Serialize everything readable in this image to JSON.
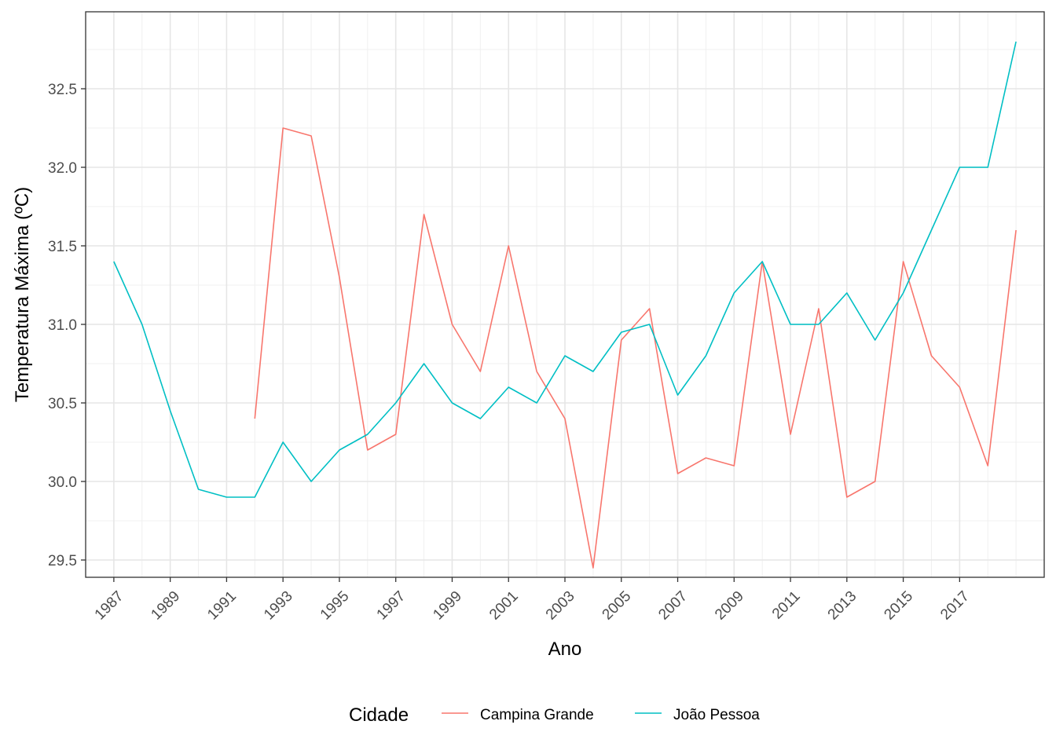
{
  "chart_data": {
    "type": "line",
    "xlabel": "Ano",
    "ylabel": "Temperatura Máxima (ºC)",
    "xlim": [
      1986,
      2020
    ],
    "ylim": [
      29.39,
      32.99
    ],
    "x_ticks": [
      1987,
      1989,
      1991,
      1993,
      1995,
      1997,
      1999,
      2001,
      2003,
      2005,
      2007,
      2009,
      2011,
      2013,
      2015,
      2017
    ],
    "y_ticks": [
      29.5,
      30.0,
      30.5,
      31.0,
      31.5,
      32.0,
      32.5
    ],
    "y_tick_labels": [
      "29.5",
      "30.0",
      "30.5",
      "31.0",
      "31.5",
      "32.0",
      "32.5"
    ],
    "grid": true,
    "legend": {
      "title": "Cidade",
      "position": "bottom"
    },
    "series": [
      {
        "name": "Campina Grande",
        "color": "#F8766D",
        "points": [
          [
            1992,
            30.4
          ],
          [
            1993,
            32.25
          ],
          [
            1994,
            32.2
          ],
          [
            1995,
            31.3
          ],
          [
            1996,
            30.2
          ],
          [
            1997,
            30.3
          ],
          [
            1998,
            31.7
          ],
          [
            1999,
            31.0
          ],
          [
            2000,
            30.7
          ],
          [
            2001,
            31.5
          ],
          [
            2002,
            30.7
          ],
          [
            2003,
            30.4
          ],
          [
            2004,
            29.45
          ],
          [
            2005,
            30.9
          ],
          [
            2006,
            31.1
          ],
          [
            2007,
            30.05
          ],
          [
            2008,
            30.15
          ],
          [
            2009,
            30.1
          ],
          [
            2010,
            31.4
          ],
          [
            2011,
            30.3
          ],
          [
            2012,
            31.1
          ],
          [
            2013,
            29.9
          ],
          [
            2014,
            30.0
          ],
          [
            2015,
            31.4
          ],
          [
            2016,
            30.8
          ],
          [
            2017,
            30.6
          ],
          [
            2018,
            30.1
          ],
          [
            2019,
            31.6
          ]
        ]
      },
      {
        "name": "João Pessoa",
        "color": "#00BFC4",
        "points": [
          [
            1987,
            31.4
          ],
          [
            1988,
            31.0
          ],
          [
            1989,
            30.45
          ],
          [
            1990,
            29.95
          ],
          [
            1991,
            29.9
          ],
          [
            1992,
            29.9
          ],
          [
            1993,
            30.25
          ],
          [
            1994,
            30.0
          ],
          [
            1995,
            30.2
          ],
          [
            1996,
            30.3
          ],
          [
            1997,
            30.5
          ],
          [
            1998,
            30.75
          ],
          [
            1999,
            30.5
          ],
          [
            2000,
            30.4
          ],
          [
            2001,
            30.6
          ],
          [
            2002,
            30.5
          ],
          [
            2003,
            30.8
          ],
          [
            2004,
            30.7
          ],
          [
            2005,
            30.95
          ],
          [
            2006,
            31.0
          ],
          [
            2007,
            30.55
          ],
          [
            2008,
            30.8
          ],
          [
            2009,
            31.2
          ],
          [
            2010,
            31.4
          ],
          [
            2011,
            31.0
          ],
          [
            2012,
            31.0
          ],
          [
            2013,
            31.2
          ],
          [
            2014,
            30.9
          ],
          [
            2015,
            31.2
          ],
          [
            2016,
            31.6
          ],
          [
            2017,
            32.0
          ],
          [
            2018,
            32.0
          ],
          [
            2019,
            32.8
          ]
        ]
      }
    ]
  }
}
